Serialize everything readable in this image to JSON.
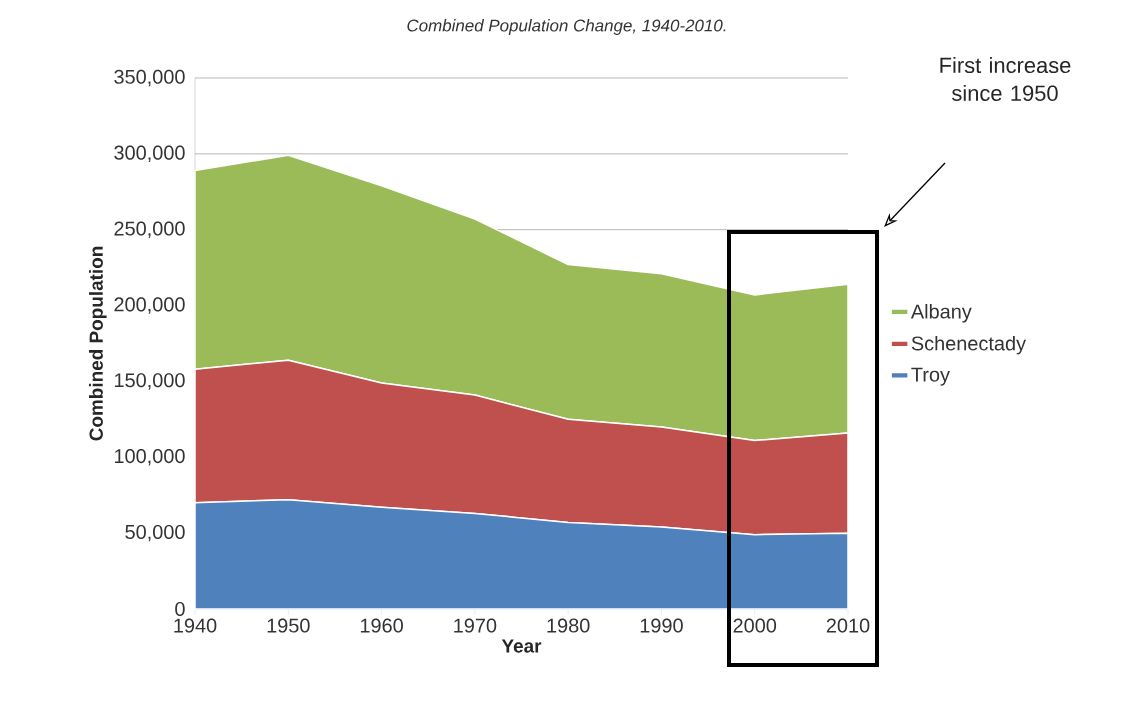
{
  "chart_data": {
    "type": "area",
    "stacked": true,
    "title": "Combined Population Change, 1940-2010.",
    "xlabel": "Year",
    "ylabel": "Combined Population",
    "x": [
      1940,
      1950,
      1960,
      1970,
      1980,
      1990,
      2000,
      2010
    ],
    "series": [
      {
        "name": "Troy",
        "color": "#4f81bd",
        "values": [
          70000,
          72000,
          67000,
          63000,
          57000,
          54000,
          49000,
          50000
        ]
      },
      {
        "name": "Schenectady",
        "color": "#c0504d",
        "values": [
          88000,
          92000,
          82000,
          78000,
          68000,
          66000,
          62000,
          66000
        ]
      },
      {
        "name": "Albany",
        "color": "#9bbb59",
        "values": [
          131000,
          135000,
          130000,
          116000,
          102000,
          101000,
          96000,
          98000
        ]
      }
    ],
    "xlim": [
      1940,
      2010
    ],
    "xticks": [
      1940,
      1950,
      1960,
      1970,
      1980,
      1990,
      2000,
      2010
    ],
    "ylim": [
      0,
      350000
    ],
    "yticks": [
      0,
      {
        "value": 50000,
        "label": "50,000"
      },
      {
        "value": 100000,
        "label": "100,000"
      },
      {
        "value": 150000,
        "label": "150,000"
      },
      {
        "value": 200000,
        "label": "200,000"
      },
      {
        "value": 250000,
        "label": "250,000"
      },
      {
        "value": 300000,
        "label": "300,000"
      },
      {
        "value": 350000,
        "label": "350,000"
      }
    ],
    "grid": "y",
    "legend": "right",
    "annotations": [
      "First increase since 1950"
    ]
  }
}
